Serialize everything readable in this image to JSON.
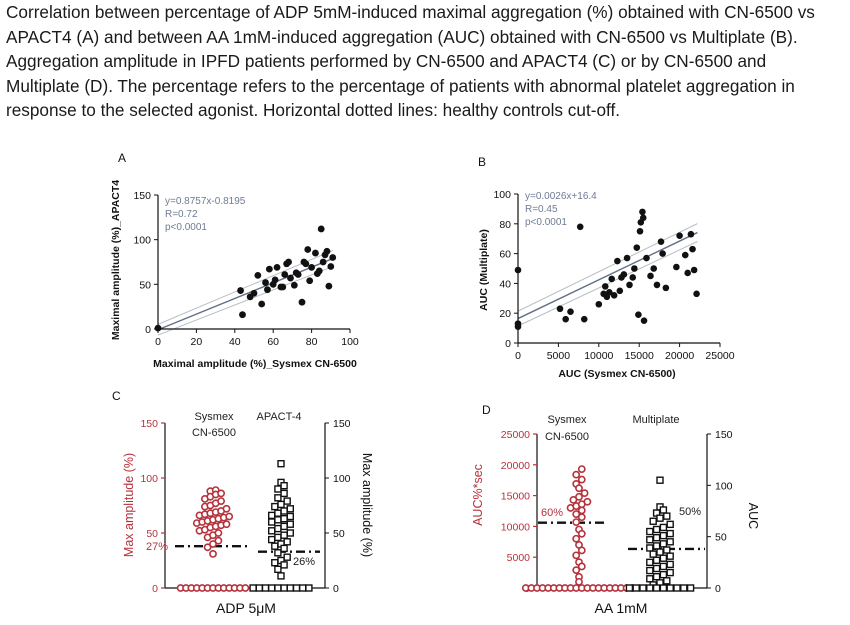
{
  "caption": "Correlation between percentage of ADP 5mM-induced maximal aggregation (%) obtained with CN-6500 vs APACT4 (A) and between AA 1mM-induced aggregation (AUC) obtained with CN-6500 vs Multiplate (B). Aggregation amplitude in IPFD patients performed by CN-6500 and APACT4 (C) or by CN-6500 and Multiplate (D). The percentage refers to the percentage of patients with abnormal platelet aggregation in response to the selected agonist. Horizontal dotted lines: healthy controls cut-off.",
  "colors": {
    "red": "#b5323c",
    "black": "#111111",
    "fit": "#607086",
    "ci": "#b9bec6",
    "stats": "#6e7b95"
  },
  "chart_data": [
    {
      "panel": "A",
      "type": "scatter",
      "xlabel": "Maximal amplitude (%)_Sysmex CN-6500",
      "ylabel": "Maximal amplitude (%)_APACT4",
      "xlim": [
        0,
        100
      ],
      "ylim": [
        0,
        150
      ],
      "xticks": [
        "0",
        "20",
        "40",
        "60",
        "80",
        "100"
      ],
      "yticks": [
        "0",
        "50",
        "100",
        "150"
      ],
      "annotations": [
        "y=0.8757x-0.8195",
        "R=0.72",
        "p<0.0001"
      ],
      "fit": {
        "slope": 0.8757,
        "intercept": -0.8195
      },
      "points": [
        [
          0,
          1
        ],
        [
          43,
          43
        ],
        [
          44,
          16
        ],
        [
          48,
          36
        ],
        [
          50,
          40
        ],
        [
          52,
          60
        ],
        [
          54,
          28
        ],
        [
          56,
          52
        ],
        [
          57,
          44
        ],
        [
          58,
          67
        ],
        [
          60,
          50
        ],
        [
          61,
          55
        ],
        [
          62,
          69
        ],
        [
          64,
          47
        ],
        [
          65,
          47
        ],
        [
          66,
          61
        ],
        [
          67,
          73
        ],
        [
          68,
          75
        ],
        [
          69,
          57
        ],
        [
          71,
          49
        ],
        [
          72,
          63
        ],
        [
          73,
          61
        ],
        [
          75,
          30
        ],
        [
          76,
          75
        ],
        [
          77,
          73
        ],
        [
          78,
          89
        ],
        [
          79,
          54
        ],
        [
          80,
          69
        ],
        [
          82,
          85
        ],
        [
          83,
          62
        ],
        [
          84,
          65
        ],
        [
          85,
          112
        ],
        [
          86,
          75
        ],
        [
          87,
          83
        ],
        [
          88,
          87
        ],
        [
          89,
          48
        ],
        [
          90,
          70
        ],
        [
          91,
          80
        ]
      ]
    },
    {
      "panel": "B",
      "type": "scatter",
      "xlabel": "AUC (Sysmex CN-6500)",
      "ylabel": "AUC (Multiplate)",
      "xlim": [
        0,
        25000
      ],
      "ylim": [
        0,
        100
      ],
      "xticks": [
        "0",
        "5000",
        "10000",
        "15000",
        "20000",
        "25000"
      ],
      "yticks": [
        "0",
        "20",
        "40",
        "60",
        "80",
        "100"
      ],
      "annotations": [
        "y=0.0026x+16.4",
        "R=0.45",
        "p<0.0001"
      ],
      "fit": {
        "slope": 0.0026,
        "intercept": 16.4
      },
      "points": [
        [
          0,
          49
        ],
        [
          0,
          13
        ],
        [
          0,
          11
        ],
        [
          5200,
          23
        ],
        [
          5900,
          16
        ],
        [
          6500,
          21
        ],
        [
          7700,
          78
        ],
        [
          8200,
          16
        ],
        [
          10000,
          26
        ],
        [
          10600,
          33
        ],
        [
          10800,
          38
        ],
        [
          11000,
          31
        ],
        [
          11300,
          34
        ],
        [
          11600,
          43
        ],
        [
          11900,
          32
        ],
        [
          12300,
          55
        ],
        [
          12600,
          35
        ],
        [
          12800,
          44
        ],
        [
          13100,
          46
        ],
        [
          13500,
          57
        ],
        [
          13800,
          39
        ],
        [
          14200,
          44
        ],
        [
          14400,
          50
        ],
        [
          14700,
          64
        ],
        [
          14900,
          19
        ],
        [
          15100,
          75
        ],
        [
          15200,
          81
        ],
        [
          15400,
          88
        ],
        [
          15500,
          84
        ],
        [
          15600,
          15
        ],
        [
          15900,
          57
        ],
        [
          16400,
          45
        ],
        [
          16800,
          50
        ],
        [
          17200,
          39
        ],
        [
          17700,
          68
        ],
        [
          17900,
          60
        ],
        [
          18300,
          37
        ],
        [
          19600,
          51
        ],
        [
          20000,
          72
        ],
        [
          20700,
          59
        ],
        [
          21000,
          47
        ],
        [
          21400,
          73
        ],
        [
          21600,
          63
        ],
        [
          21800,
          49
        ],
        [
          22100,
          33
        ]
      ]
    },
    {
      "panel": "C",
      "type": "scatter",
      "xlabel": "ADP 5μM",
      "ylabel": "Max amplitude (%)",
      "ylabel_right": "Max amplitude (%)",
      "ylim": [
        0,
        150
      ],
      "yticks": [
        "0",
        "50",
        "100",
        "150"
      ],
      "series": [
        {
          "name": "Sysmex CN-6500",
          "cutoff": 38,
          "percent_abnormal": "27%",
          "values": [
            0,
            0,
            0,
            0,
            0,
            0,
            0,
            0,
            0,
            0,
            0,
            0,
            0,
            31,
            37,
            40,
            43,
            46,
            48,
            50,
            52,
            53,
            55,
            56,
            57,
            58,
            59,
            60,
            61,
            62,
            63,
            64,
            65,
            66,
            67,
            68,
            69,
            70,
            72,
            74,
            75,
            77,
            79,
            81,
            83,
            85,
            86,
            88,
            89
          ]
        },
        {
          "name": "APACT-4",
          "cutoff": 33,
          "percent_abnormal": "26%",
          "values": [
            0,
            0,
            0,
            0,
            0,
            0,
            0,
            0,
            0,
            0,
            11,
            17,
            21,
            23,
            25,
            28,
            32,
            36,
            38,
            40,
            42,
            44,
            46,
            48,
            50,
            52,
            54,
            56,
            58,
            60,
            62,
            63,
            65,
            66,
            68,
            70,
            72,
            74,
            76,
            79,
            82,
            86,
            90,
            93,
            96,
            113
          ]
        }
      ]
    },
    {
      "panel": "D",
      "type": "scatter",
      "xlabel": "AA 1mM",
      "ylabel": "AUC%*sec",
      "ylabel_right": "AUC",
      "ylim_left": [
        0,
        25000
      ],
      "ylim_right": [
        0,
        150
      ],
      "yticks_left": [
        "0",
        "5000",
        "10000",
        "15000",
        "20000",
        "25000"
      ],
      "yticks_right": [
        "0",
        "50",
        "100",
        "150"
      ],
      "series": [
        {
          "name": "Sysmex CN-6500",
          "cutoff": 10600,
          "percent_abnormal": "60%",
          "values": [
            0,
            0,
            0,
            0,
            0,
            0,
            0,
            0,
            0,
            0,
            0,
            0,
            0,
            0,
            0,
            0,
            0,
            0,
            0,
            0,
            1000,
            1800,
            2900,
            3500,
            4200,
            5300,
            6100,
            7000,
            8000,
            8800,
            9500,
            10700,
            11500,
            12000,
            12600,
            13000,
            13300,
            13600,
            14000,
            14300,
            14800,
            15400,
            16200,
            16900,
            17600,
            18400,
            19300
          ]
        },
        {
          "name": "Multiplate",
          "cutoff": 38,
          "percent_abnormal": "50%",
          "values": [
            0,
            0,
            0,
            0,
            0,
            0,
            0,
            0,
            0,
            0,
            3,
            5,
            7,
            9,
            11,
            13,
            15,
            17,
            19,
            21,
            23,
            25,
            27,
            29,
            31,
            33,
            35,
            37,
            39,
            41,
            43,
            45,
            47,
            49,
            51,
            53,
            55,
            57,
            59,
            62,
            65,
            68,
            70,
            73,
            76,
            79,
            105
          ]
        }
      ]
    }
  ]
}
